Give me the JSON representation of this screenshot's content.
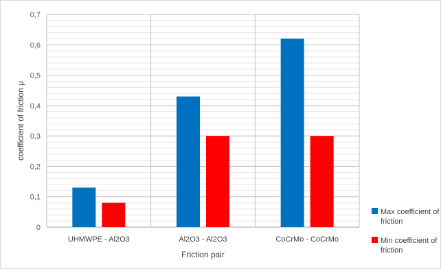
{
  "chart_data": {
    "type": "bar",
    "title": "",
    "xlabel": "Friction pair",
    "ylabel": "coefficient of friction μ",
    "ylim": [
      0,
      0.7
    ],
    "yticks": [
      "0",
      "0,1",
      "0,2",
      "0,3",
      "0,4",
      "0,5",
      "0,6",
      "0,7"
    ],
    "grid": true,
    "legend_position": "right",
    "categories": [
      "UHMWPE - Al2O3",
      "Al2O3 - Al2O3",
      "CoCrMo - CoCrMo"
    ],
    "series": [
      {
        "name": "Max coefficient of friction",
        "legend_lines": [
          "Max coefficient of",
          "friction"
        ],
        "color": "#0070c0",
        "values": [
          0.13,
          0.43,
          0.62
        ]
      },
      {
        "name": "Min coefficient of friction",
        "legend_lines": [
          "Min coefficient of",
          "friction"
        ],
        "color": "#ff0000",
        "values": [
          0.08,
          0.3,
          0.3
        ]
      }
    ]
  }
}
